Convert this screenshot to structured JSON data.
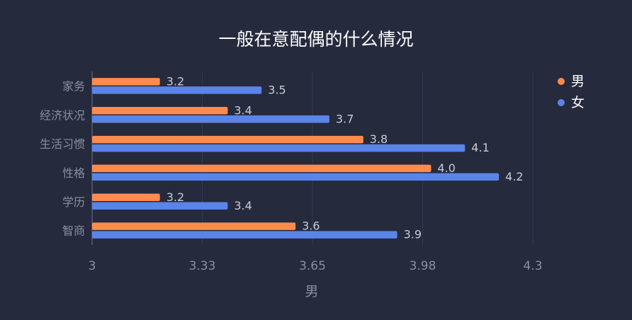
{
  "chart_data": {
    "type": "bar",
    "orientation": "horizontal",
    "title": "一般在意配偶的什么情况",
    "xlabel": "男",
    "ylabel": "",
    "categories": [
      "家务",
      "经济状况",
      "生活习惯",
      "性格",
      "学历",
      "智商"
    ],
    "series": [
      {
        "name": "男",
        "color": "#ff8a4d",
        "values": [
          3.2,
          3.4,
          3.8,
          4.0,
          3.2,
          3.6
        ],
        "labels": [
          "3.2",
          "3.4",
          "3.8",
          "4.0",
          "3.2",
          "3.6"
        ]
      },
      {
        "name": "女",
        "color": "#5b84e8",
        "values": [
          3.5,
          3.7,
          4.1,
          4.2,
          3.4,
          3.9
        ],
        "labels": [
          "3.5",
          "3.7",
          "4.1",
          "4.2",
          "3.4",
          "3.9"
        ]
      }
    ],
    "xlim": [
      3,
      4.3
    ],
    "xticks": [
      3,
      3.325,
      3.65,
      3.975,
      4.3
    ],
    "xtick_labels": [
      "3",
      "3.33",
      "3.65",
      "3.98",
      "4.3"
    ],
    "grid": true,
    "legend_position": "top-right"
  }
}
